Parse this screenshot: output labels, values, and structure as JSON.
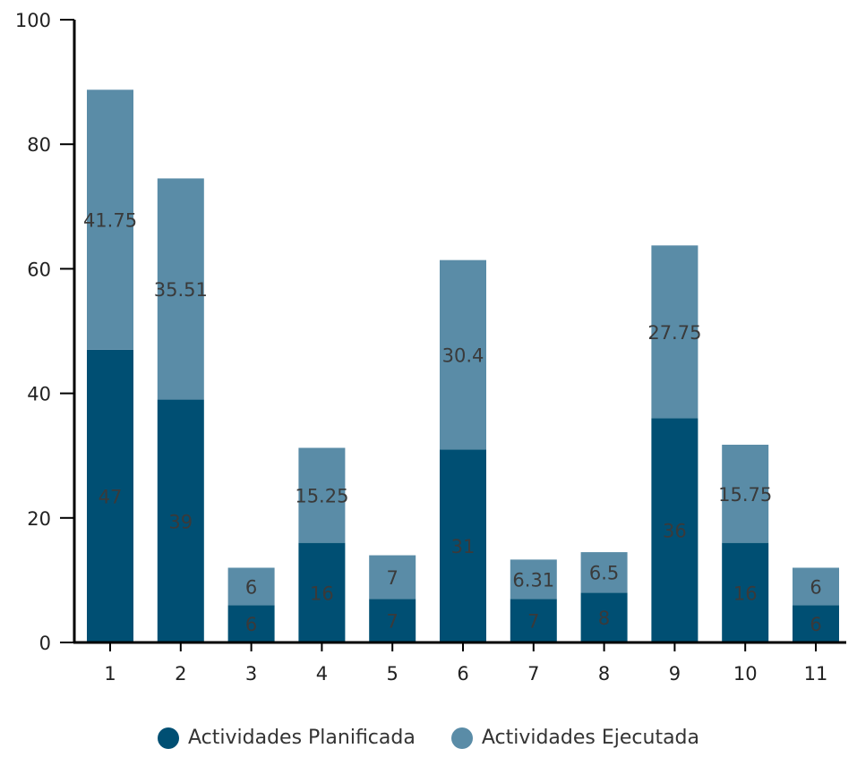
{
  "chart_data": {
    "type": "bar",
    "stacked": true,
    "categories": [
      "1",
      "2",
      "3",
      "4",
      "5",
      "6",
      "7",
      "8",
      "9",
      "10",
      "11"
    ],
    "series": [
      {
        "name": "Actividades Planificada",
        "color": "#004f73",
        "values": [
          47,
          39,
          6,
          16,
          7,
          31,
          7,
          8,
          36,
          16,
          6
        ],
        "labels": [
          "47",
          "39",
          "6",
          "16",
          "7",
          "31",
          "7",
          "8",
          "36",
          "16",
          "6"
        ]
      },
      {
        "name": "Actividades Ejecutada",
        "color": "#5a8ca7",
        "values": [
          41.75,
          35.51,
          6,
          15.25,
          7,
          30.4,
          6.31,
          6.5,
          27.75,
          15.75,
          6
        ],
        "labels": [
          "41.75",
          "35.51",
          "6",
          "15.25",
          "7",
          "30.4",
          "6.31",
          "6.5",
          "27.75",
          "15.75",
          "6"
        ]
      }
    ],
    "y_ticks": [
      "0",
      "20",
      "40",
      "60",
      "80",
      "100"
    ],
    "ylim": [
      0,
      100
    ],
    "title": "",
    "xlabel": "",
    "ylabel": "",
    "grid": false,
    "legend_position": "bottom"
  }
}
